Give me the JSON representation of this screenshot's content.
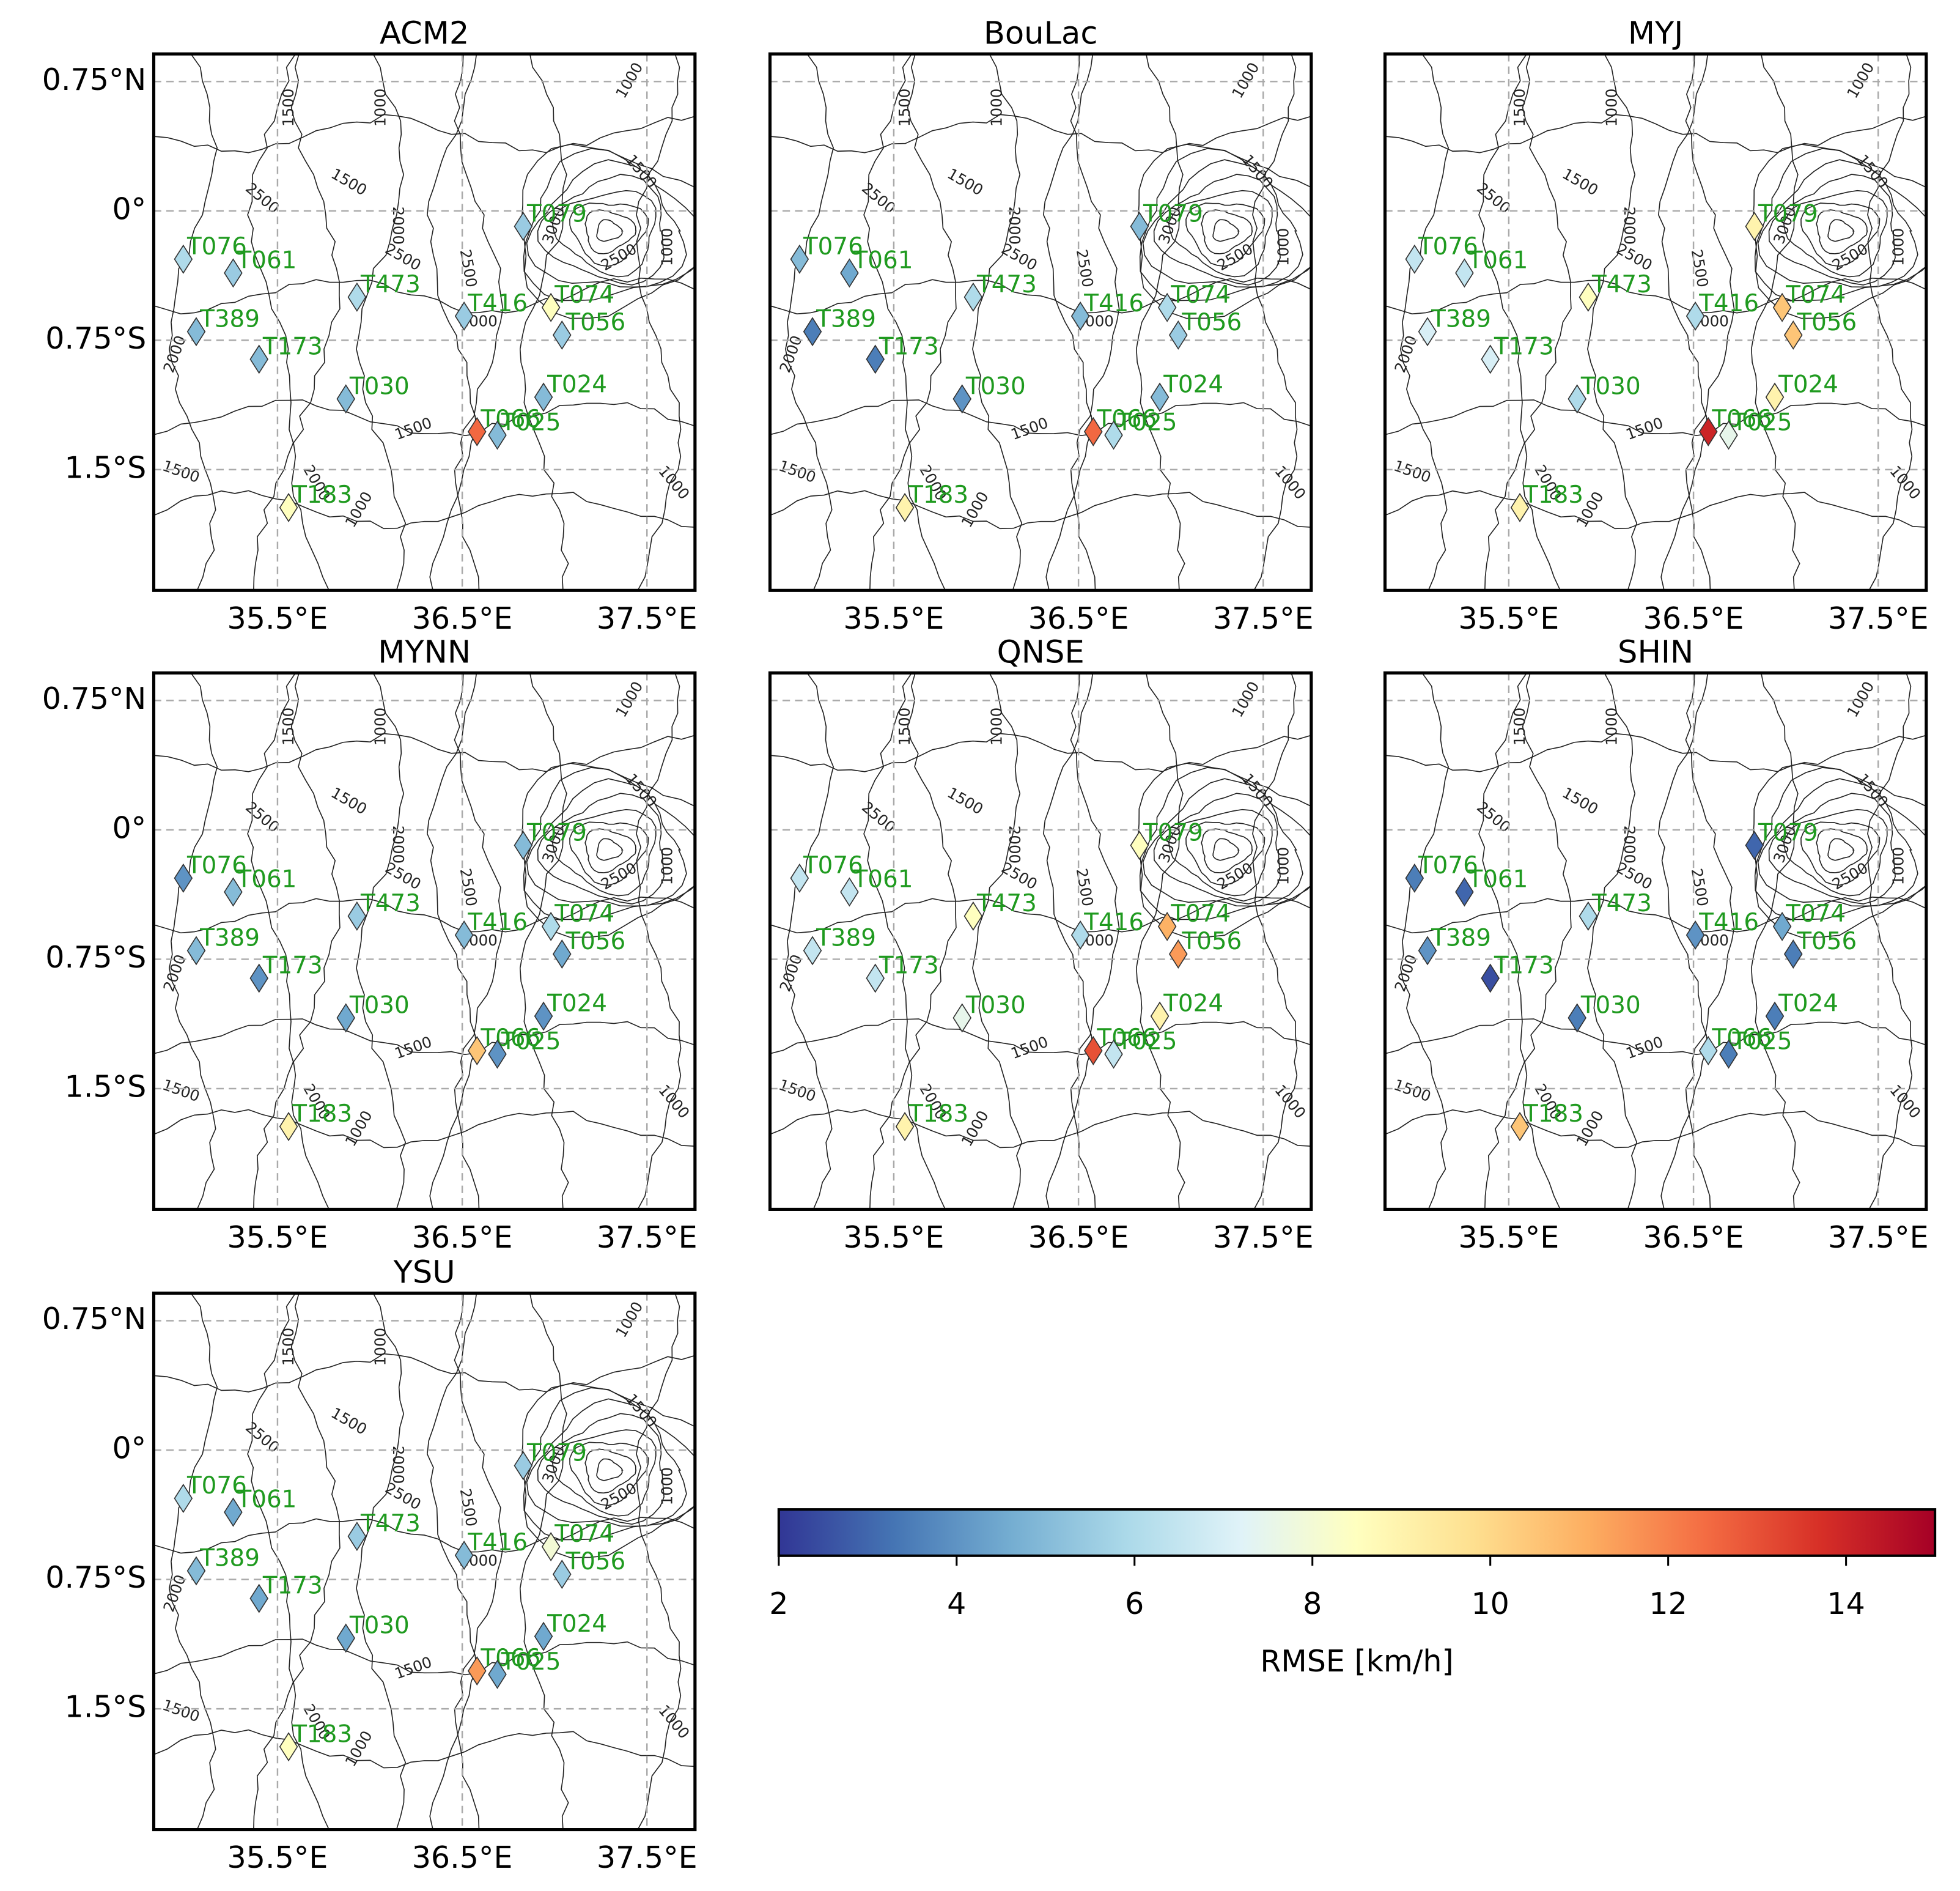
{
  "chart_data": {
    "type": "map",
    "grid": true,
    "marker": "diamond",
    "station_label_color": "#1f9a1f",
    "xlim": [
      34.83,
      37.76
    ],
    "ylim": [
      -2.2,
      0.91
    ],
    "xticks": [
      {
        "value": 35.5,
        "label": "35.5°E"
      },
      {
        "value": 36.5,
        "label": "36.5°E"
      },
      {
        "value": 37.5,
        "label": "37.5°E"
      }
    ],
    "yticks": [
      {
        "value": 0.75,
        "label": "0.75°N"
      },
      {
        "value": 0,
        "label": "0°"
      },
      {
        "value": -0.75,
        "label": "0.75°S"
      },
      {
        "value": -1.5,
        "label": "1.5°S"
      }
    ],
    "contour_levels": [
      1000,
      1500,
      2000,
      2500,
      3000
    ],
    "stations": {
      "names": [
        "T076",
        "T061",
        "T389",
        "T173",
        "T473",
        "T030",
        "T416",
        "T074",
        "T056",
        "T079",
        "T024",
        "T066",
        "T025",
        "T183"
      ],
      "lon": [
        34.99,
        35.26,
        35.06,
        35.4,
        35.93,
        35.87,
        36.51,
        36.98,
        37.04,
        36.83,
        36.94,
        36.58,
        36.69,
        35.56
      ],
      "lat": [
        -0.28,
        -0.36,
        -0.7,
        -0.86,
        -0.5,
        -1.09,
        -0.61,
        -0.56,
        -0.72,
        -0.09,
        -1.08,
        -1.28,
        -1.3,
        -1.72
      ]
    },
    "panels": [
      {
        "title": "ACM2",
        "values": [
          6,
          5.5,
          5,
          5,
          6,
          5,
          5.5,
          8.5,
          5.5,
          5.5,
          5,
          12.5,
          5,
          8.5
        ]
      },
      {
        "title": "BouLac",
        "values": [
          5,
          4.5,
          3.5,
          3.5,
          6,
          4,
          5,
          6,
          5.5,
          5,
          5,
          12.5,
          6,
          9
        ]
      },
      {
        "title": "MYJ",
        "values": [
          6.5,
          6.5,
          7,
          7,
          8.5,
          6,
          6,
          10.5,
          10.5,
          9,
          9,
          14,
          7.5,
          9
        ]
      },
      {
        "title": "MYNN",
        "values": [
          4,
          5,
          5,
          4,
          5.5,
          4.5,
          5,
          6,
          4.5,
          5,
          4,
          10.5,
          4,
          9
        ]
      },
      {
        "title": "QNSE",
        "values": [
          6.5,
          6.5,
          6.5,
          6.5,
          8.5,
          7.5,
          6,
          11,
          11.5,
          8.5,
          9,
          13,
          6.5,
          9
        ]
      },
      {
        "title": "SHIN",
        "values": [
          3.5,
          3,
          4,
          2.5,
          6,
          3.5,
          4,
          4.5,
          3.5,
          3,
          3.5,
          6,
          3.5,
          10.5
        ]
      },
      {
        "title": "YSU",
        "values": [
          6,
          4.5,
          5,
          4.5,
          5.5,
          4.5,
          5,
          8,
          5.5,
          5.5,
          4.5,
          11.5,
          4.5,
          8.5
        ]
      }
    ],
    "colorbar": {
      "label": "RMSE [km/h]",
      "lim": [
        2,
        15
      ],
      "ticks": [
        2,
        4,
        6,
        8,
        10,
        12,
        14
      ],
      "colors": [
        "#313695",
        "#4575b4",
        "#74add1",
        "#abd9e9",
        "#e0f3f8",
        "#ffffbf",
        "#fee090",
        "#fdae61",
        "#f46d43",
        "#d73027",
        "#a50026"
      ]
    }
  }
}
